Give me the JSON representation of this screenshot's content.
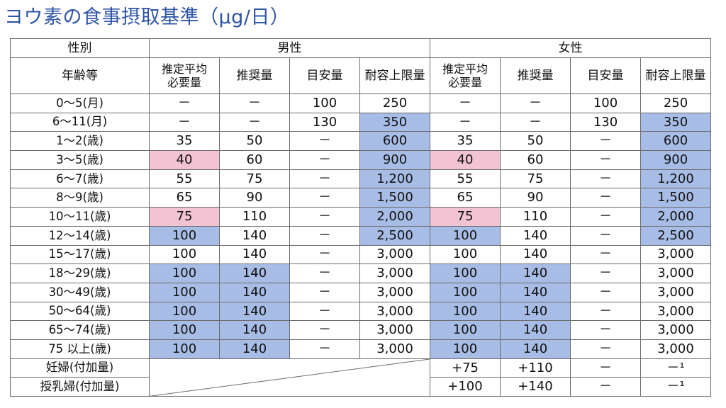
{
  "title": "ヨウ素の食事摂取基準（μg/日）",
  "header": {
    "sex_label": "性別",
    "male": "男性",
    "female": "女性",
    "age_label": "年齢等",
    "columns": [
      [
        "推定平均",
        "必要量"
      ],
      "推奨量",
      "目安量",
      "耐容上限量"
    ]
  },
  "colors": {
    "highlight_blue": "#a8bde6",
    "highlight_pink": "#f2c3d3",
    "title_blue": "#2e55a5"
  },
  "rows": [
    {
      "age": "0～5(月)",
      "cells": [
        [
          "－",
          ""
        ],
        [
          "－",
          ""
        ],
        [
          "100",
          ""
        ],
        [
          "250",
          ""
        ],
        [
          "－",
          ""
        ],
        [
          "－",
          ""
        ],
        [
          "100",
          ""
        ],
        [
          "250",
          ""
        ]
      ]
    },
    {
      "age": "6～11(月)",
      "cells": [
        [
          "－",
          ""
        ],
        [
          "－",
          ""
        ],
        [
          "130",
          ""
        ],
        [
          "350",
          "blue"
        ],
        [
          "－",
          ""
        ],
        [
          "－",
          ""
        ],
        [
          "130",
          ""
        ],
        [
          "350",
          "blue"
        ]
      ]
    },
    {
      "age": "1～2(歳)",
      "cells": [
        [
          "35",
          ""
        ],
        [
          "50",
          ""
        ],
        [
          "－",
          ""
        ],
        [
          "600",
          "blue"
        ],
        [
          "35",
          ""
        ],
        [
          "50",
          ""
        ],
        [
          "－",
          ""
        ],
        [
          "600",
          "blue"
        ]
      ]
    },
    {
      "age": "3～5(歳)",
      "cells": [
        [
          "40",
          "pink"
        ],
        [
          "60",
          ""
        ],
        [
          "－",
          ""
        ],
        [
          "900",
          "blue"
        ],
        [
          "40",
          "pink"
        ],
        [
          "60",
          ""
        ],
        [
          "－",
          ""
        ],
        [
          "900",
          "blue"
        ]
      ]
    },
    {
      "age": "6～7(歳)",
      "cells": [
        [
          "55",
          ""
        ],
        [
          "75",
          ""
        ],
        [
          "－",
          ""
        ],
        [
          "1,200",
          "blue"
        ],
        [
          "55",
          ""
        ],
        [
          "75",
          ""
        ],
        [
          "－",
          ""
        ],
        [
          "1,200",
          "blue"
        ]
      ]
    },
    {
      "age": "8～9(歳)",
      "cells": [
        [
          "65",
          ""
        ],
        [
          "90",
          ""
        ],
        [
          "－",
          ""
        ],
        [
          "1,500",
          "blue"
        ],
        [
          "65",
          ""
        ],
        [
          "90",
          ""
        ],
        [
          "－",
          ""
        ],
        [
          "1,500",
          "blue"
        ]
      ]
    },
    {
      "age": "10～11(歳)",
      "cells": [
        [
          "75",
          "pink"
        ],
        [
          "110",
          ""
        ],
        [
          "－",
          ""
        ],
        [
          "2,000",
          "blue"
        ],
        [
          "75",
          "pink"
        ],
        [
          "110",
          ""
        ],
        [
          "－",
          ""
        ],
        [
          "2,000",
          "blue"
        ]
      ]
    },
    {
      "age": "12～14(歳)",
      "cells": [
        [
          "100",
          "blue"
        ],
        [
          "140",
          ""
        ],
        [
          "－",
          ""
        ],
        [
          "2,500",
          "blue"
        ],
        [
          "100",
          "blue"
        ],
        [
          "140",
          ""
        ],
        [
          "－",
          ""
        ],
        [
          "2,500",
          "blue"
        ]
      ]
    },
    {
      "age": "15～17(歳)",
      "cells": [
        [
          "100",
          ""
        ],
        [
          "140",
          ""
        ],
        [
          "－",
          ""
        ],
        [
          "3,000",
          ""
        ],
        [
          "100",
          ""
        ],
        [
          "140",
          ""
        ],
        [
          "－",
          ""
        ],
        [
          "3,000",
          ""
        ]
      ]
    },
    {
      "age": "18～29(歳)",
      "cells": [
        [
          "100",
          "blue"
        ],
        [
          "140",
          "blue"
        ],
        [
          "－",
          ""
        ],
        [
          "3,000",
          ""
        ],
        [
          "100",
          "blue"
        ],
        [
          "140",
          "blue"
        ],
        [
          "－",
          ""
        ],
        [
          "3,000",
          ""
        ]
      ]
    },
    {
      "age": "30～49(歳)",
      "cells": [
        [
          "100",
          "blue"
        ],
        [
          "140",
          "blue"
        ],
        [
          "－",
          ""
        ],
        [
          "3,000",
          ""
        ],
        [
          "100",
          "blue"
        ],
        [
          "140",
          "blue"
        ],
        [
          "－",
          ""
        ],
        [
          "3,000",
          ""
        ]
      ]
    },
    {
      "age": "50～64(歳)",
      "cells": [
        [
          "100",
          "blue"
        ],
        [
          "140",
          "blue"
        ],
        [
          "－",
          ""
        ],
        [
          "3,000",
          ""
        ],
        [
          "100",
          "blue"
        ],
        [
          "140",
          "blue"
        ],
        [
          "－",
          ""
        ],
        [
          "3,000",
          ""
        ]
      ]
    },
    {
      "age": "65～74(歳)",
      "cells": [
        [
          "100",
          "blue"
        ],
        [
          "140",
          "blue"
        ],
        [
          "－",
          ""
        ],
        [
          "3,000",
          ""
        ],
        [
          "100",
          "blue"
        ],
        [
          "140",
          "blue"
        ],
        [
          "－",
          ""
        ],
        [
          "3,000",
          ""
        ]
      ]
    },
    {
      "age": "75 以上(歳)",
      "cells": [
        [
          "100",
          "blue"
        ],
        [
          "140",
          "blue"
        ],
        [
          "－",
          ""
        ],
        [
          "3,000",
          ""
        ],
        [
          "100",
          "blue"
        ],
        [
          "140",
          "blue"
        ],
        [
          "－",
          ""
        ],
        [
          "3,000",
          ""
        ]
      ]
    }
  ],
  "special_rows": [
    {
      "label": "妊婦(付加量)",
      "female": [
        [
          "+75",
          ""
        ],
        [
          "+110",
          ""
        ],
        [
          "－",
          ""
        ],
        [
          "－¹",
          ""
        ]
      ]
    },
    {
      "label": "授乳婦(付加量)",
      "female": [
        [
          "+100",
          ""
        ],
        [
          "+140",
          ""
        ],
        [
          "－",
          ""
        ],
        [
          "－¹",
          ""
        ]
      ]
    }
  ]
}
